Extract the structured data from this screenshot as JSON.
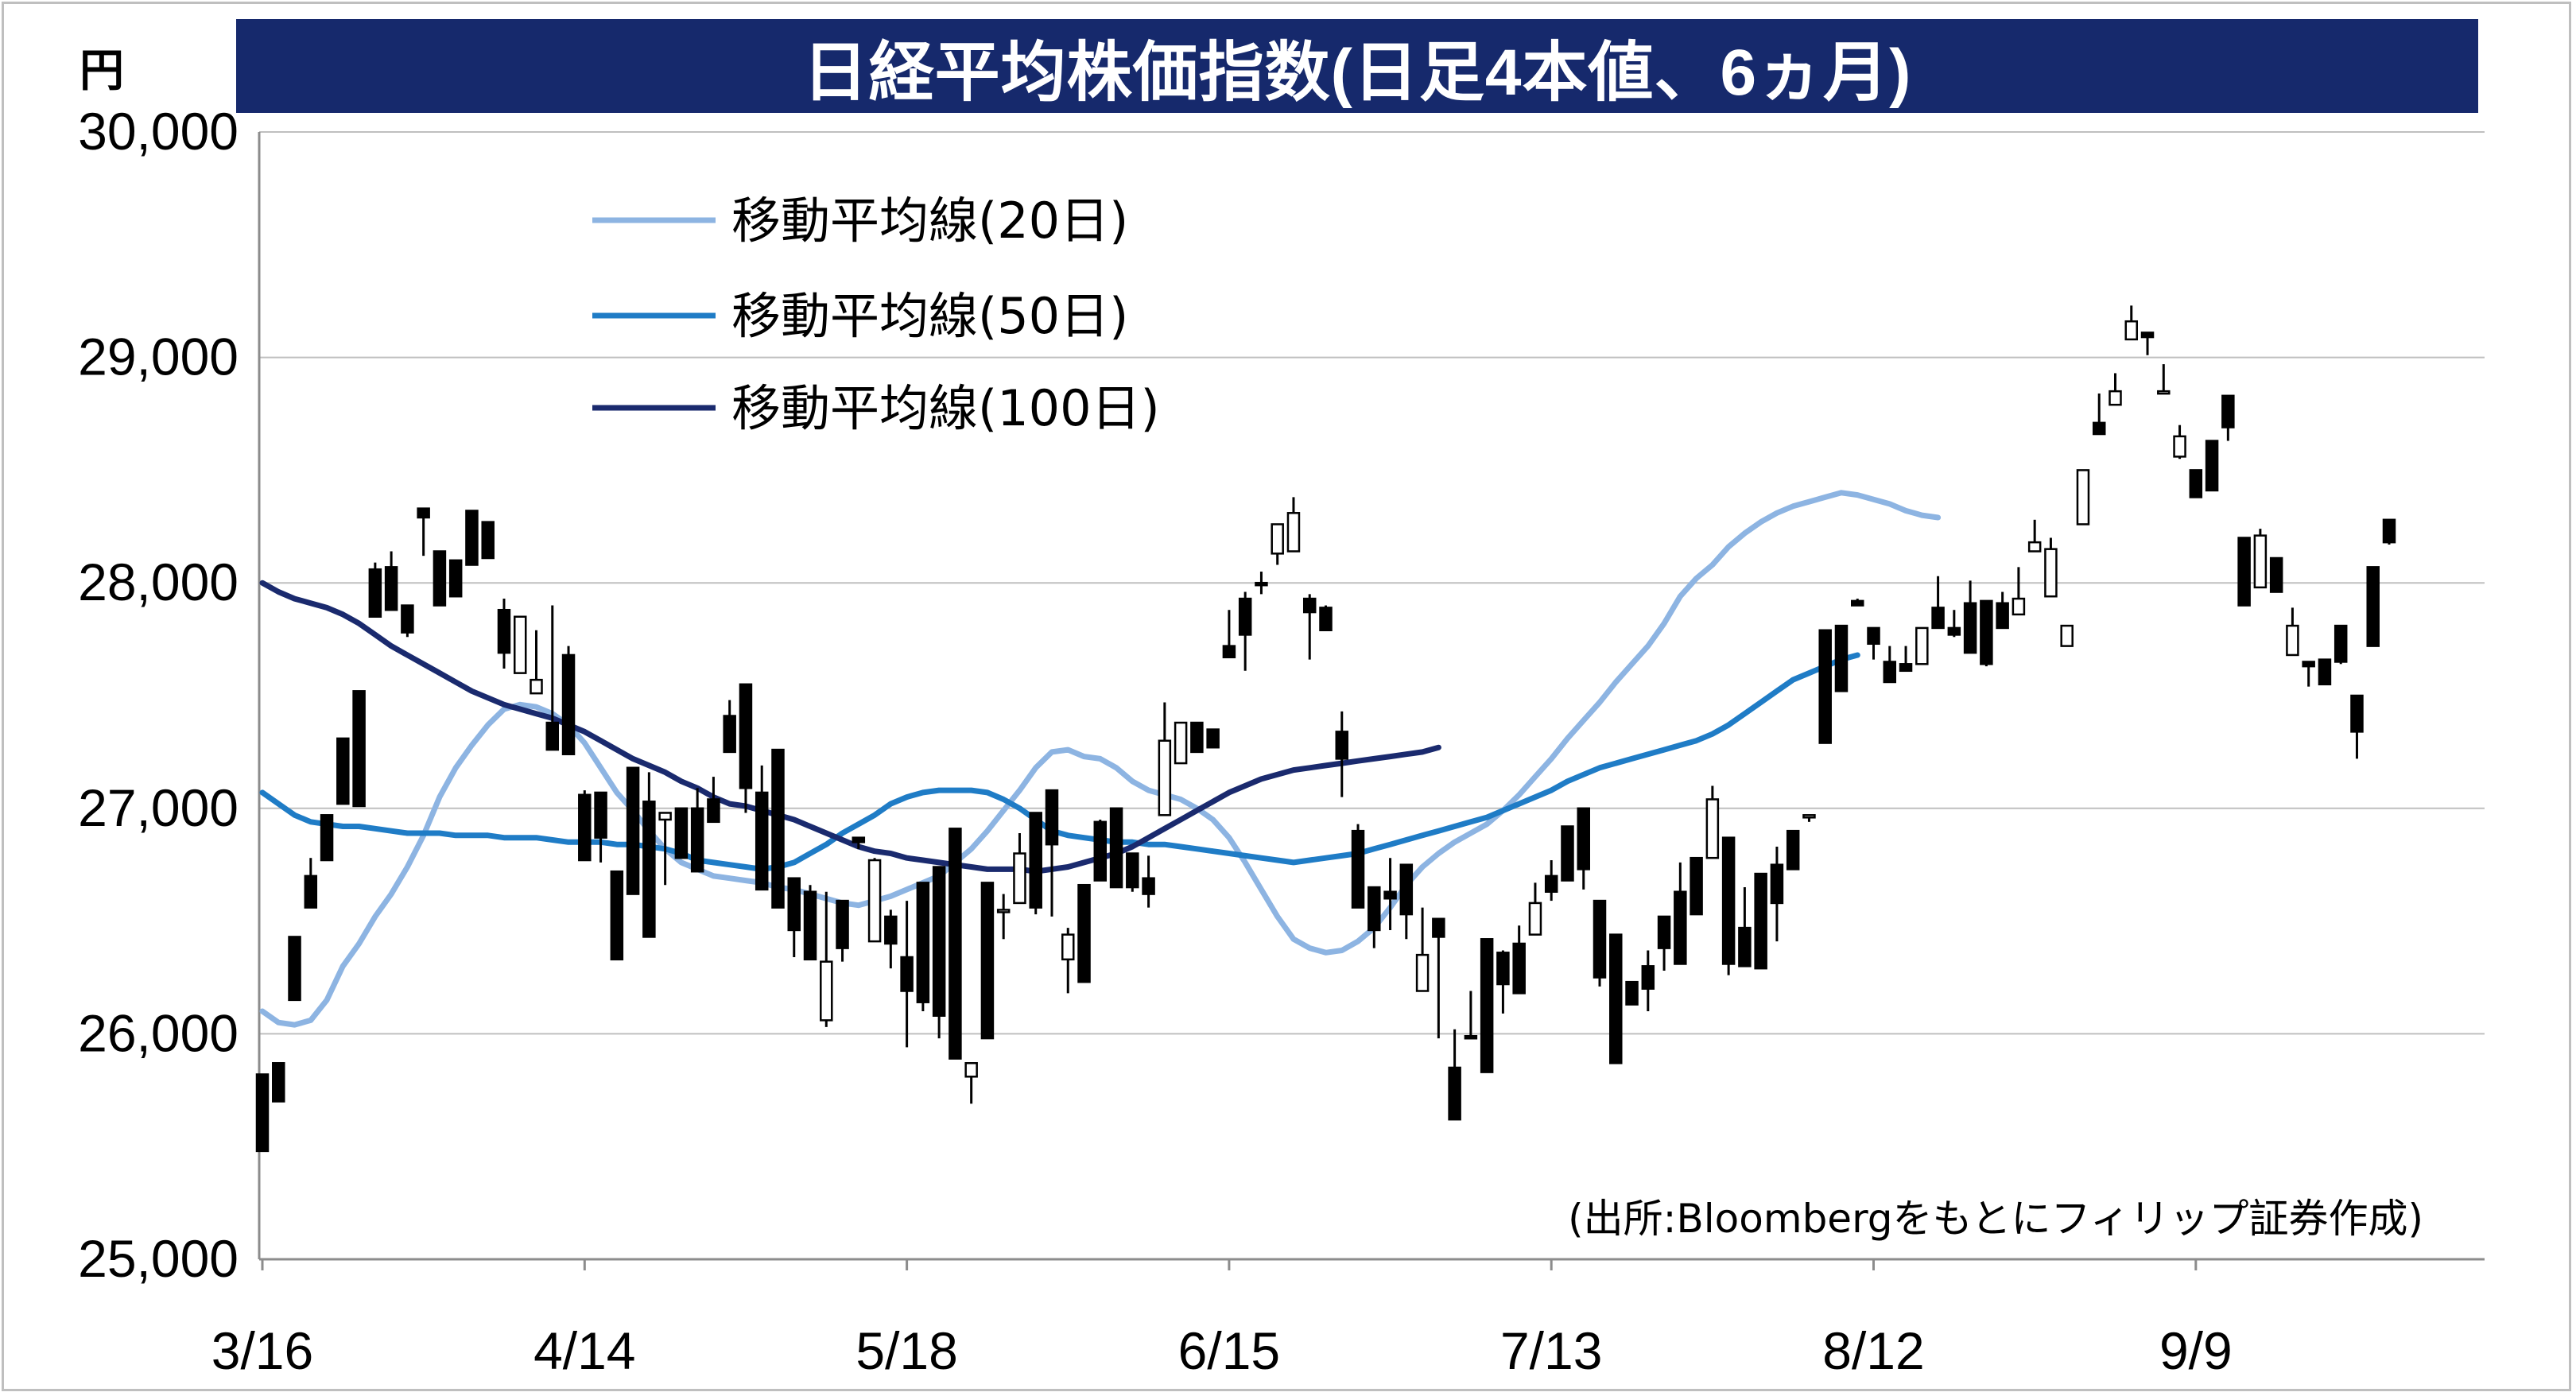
{
  "title": "日経平均株価指数(日足4本値、6ヵ月)",
  "unit_label": "円",
  "source_note": "(出所:Bloombergをもとにフィリップ証券作成)",
  "colors": {
    "title_bg": "#16296c",
    "title_text": "#ffffff",
    "ma20": "#8db4e2",
    "ma50": "#1f7cc6",
    "ma100": "#1a2a6e",
    "up_candle_fill": "#ffffff",
    "down_candle_fill": "#000000",
    "grid": "#bfbfbf"
  },
  "chart_data": {
    "type": "candlestick",
    "title": "日経平均株価指数(日足4本値、6ヵ月)",
    "ylabel": "円",
    "ylim": [
      25000,
      30000
    ],
    "yticks": [
      25000,
      26000,
      27000,
      28000,
      29000,
      30000
    ],
    "ytick_labels": [
      "25,000",
      "26,000",
      "27,000",
      "28,000",
      "29,000",
      "30,000"
    ],
    "xtick_labels": [
      "3/16",
      "4/14",
      "5/18",
      "6/15",
      "7/13",
      "8/12",
      "9/9"
    ],
    "xtick_index": [
      0,
      20,
      40,
      60,
      80,
      100,
      120
    ],
    "grid": true,
    "legend_position": "top-left",
    "series": [
      {
        "name": "移動平均線(20日)",
        "color": "#8db4e2",
        "values": [
          26100,
          26050,
          26040,
          26060,
          26150,
          26300,
          26400,
          26520,
          26620,
          26740,
          26880,
          27050,
          27180,
          27280,
          27370,
          27440,
          27460,
          27450,
          27420,
          27370,
          27290,
          27180,
          27070,
          26990,
          26900,
          26820,
          26760,
          26730,
          26700,
          26690,
          26680,
          26670,
          26650,
          26640,
          26620,
          26600,
          26580,
          26570,
          26590,
          26610,
          26640,
          26670,
          26700,
          26760,
          26820,
          26900,
          26990,
          27080,
          27180,
          27250,
          27260,
          27230,
          27220,
          27180,
          27120,
          27080,
          27060,
          27040,
          27000,
          26950,
          26870,
          26760,
          26640,
          26520,
          26420,
          26380,
          26360,
          26370,
          26410,
          26470,
          26560,
          26660,
          26740,
          26800,
          26850,
          26890,
          26930,
          26990,
          27060,
          27140,
          27220,
          27310,
          27390,
          27470,
          27560,
          27640,
          27720,
          27820,
          27940,
          28020,
          28080,
          28160,
          28220,
          28270,
          28310,
          28340,
          28360,
          28380,
          28400,
          28390,
          28370,
          28350,
          28320,
          28300,
          28290
        ]
      },
      {
        "name": "移動平均線(50日)",
        "color": "#1f7cc6",
        "values": [
          27070,
          27020,
          26970,
          26940,
          26930,
          26920,
          26920,
          26910,
          26900,
          26890,
          26890,
          26890,
          26880,
          26880,
          26880,
          26870,
          26870,
          26870,
          26860,
          26850,
          26850,
          26850,
          26840,
          26840,
          26830,
          26820,
          26800,
          26770,
          26760,
          26750,
          26740,
          26730,
          26740,
          26760,
          26800,
          26840,
          26890,
          26930,
          26970,
          27020,
          27050,
          27070,
          27080,
          27080,
          27080,
          27070,
          27040,
          27000,
          26950,
          26900,
          26880,
          26870,
          26860,
          26850,
          26850,
          26840,
          26840,
          26830,
          26820,
          26810,
          26800,
          26790,
          26780,
          26770,
          26760,
          26770,
          26780,
          26790,
          26800,
          26820,
          26840,
          26860,
          26880,
          26900,
          26920,
          26940,
          26960,
          26990,
          27020,
          27050,
          27080,
          27120,
          27150,
          27180,
          27200,
          27220,
          27240,
          27260,
          27280,
          27300,
          27330,
          27370,
          27420,
          27470,
          27520,
          27570,
          27600,
          27630,
          27660,
          27680
        ]
      },
      {
        "name": "移動平均線(100日)",
        "color": "#1a2a6e",
        "values": [
          28000,
          27960,
          27930,
          27910,
          27890,
          27860,
          27820,
          27770,
          27720,
          27680,
          27640,
          27600,
          27560,
          27520,
          27490,
          27460,
          27440,
          27420,
          27400,
          27370,
          27340,
          27300,
          27260,
          27220,
          27190,
          27160,
          27120,
          27090,
          27050,
          27020,
          27010,
          26990,
          26970,
          26950,
          26920,
          26890,
          26860,
          26830,
          26810,
          26800,
          26780,
          26770,
          26760,
          26750,
          26740,
          26730,
          26730,
          26730,
          26720,
          26730,
          26740,
          26760,
          26780,
          26800,
          26830,
          26870,
          26910,
          26950,
          26990,
          27030,
          27070,
          27100,
          27130,
          27150,
          27170,
          27180,
          27190,
          27200,
          27210,
          27220,
          27230,
          27240,
          27250,
          27270
        ]
      }
    ],
    "candles": [
      [
        25820,
        25480,
        25810,
        25680
      ],
      [
        25870,
        25700,
        25710,
        25840
      ],
      [
        26430,
        26150,
        26200,
        26400
      ],
      [
        26700,
        26560,
        26600,
        26780
      ],
      [
        26970,
        26770,
        26800,
        26920
      ],
      [
        27310,
        27020,
        27150,
        27210
      ],
      [
        27520,
        27010,
        27200,
        27210
      ],
      [
        28060,
        27850,
        27850,
        28090
      ],
      [
        28070,
        27880,
        27910,
        28140
      ],
      [
        27900,
        27780,
        27850,
        27760
      ],
      [
        28330,
        28290,
        28280,
        28120
      ],
      [
        28140,
        27900,
        28040,
        27910
      ],
      [
        28100,
        27940,
        28020,
        28090
      ],
      [
        28320,
        28080,
        28210,
        28280
      ],
      [
        28270,
        28110,
        28120,
        28140
      ],
      [
        27880,
        27690,
        27930,
        27620
      ],
      [
        27600,
        27850,
        27600,
        27670
      ],
      [
        27510,
        27570,
        27760,
        27790
      ],
      [
        27380,
        27260,
        27900,
        27710
      ],
      [
        27680,
        27240,
        27720,
        27290
      ],
      [
        27060,
        26770,
        27080,
        26940
      ],
      [
        27070,
        26870,
        26910,
        26760
      ],
      [
        26720,
        26330,
        26670,
        26340
      ],
      [
        27180,
        26620,
        26720,
        26890
      ],
      [
        27030,
        26430,
        26750,
        27160
      ],
      [
        26950,
        26980,
        26810,
        26660
      ],
      [
        27000,
        26780,
        26910,
        26830
      ],
      [
        27000,
        26720,
        26910,
        27090
      ],
      [
        27040,
        26940,
        27090,
        27140
      ],
      [
        27410,
        27250,
        27370,
        27480
      ],
      [
        27550,
        27090,
        26980,
        27380
      ],
      [
        27070,
        26640,
        27190,
        27000
      ],
      [
        27260,
        26560,
        26670,
        26890
      ],
      [
        26690,
        26460,
        26340,
        26690
      ],
      [
        26630,
        26330,
        26430,
        26660
      ],
      [
        26060,
        26320,
        26030,
        26630
      ],
      [
        26590,
        26380,
        26320,
        26450
      ],
      [
        26870,
        26850,
        26850,
        26820
      ],
      [
        26410,
        26770,
        26420,
        26780
      ],
      [
        26520,
        26400,
        26290,
        26550
      ],
      [
        26340,
        26190,
        26590,
        25940
      ],
      [
        26670,
        26140,
        26100,
        26300
      ],
      [
        26740,
        26080,
        25980,
        26530
      ],
      [
        26910,
        25890,
        26090,
        26220
      ],
      [
        25810,
        25870,
        25690,
        25780
      ],
      [
        26670,
        25980,
        26010,
        26300
      ],
      [
        26550,
        26550,
        26420,
        26620
      ],
      [
        26580,
        26800,
        26720,
        26890
      ],
      [
        26980,
        26560,
        26530,
        26740
      ],
      [
        27080,
        26840,
        26520,
        26900
      ],
      [
        26330,
        26440,
        26180,
        26470
      ],
      [
        26660,
        26230,
        26260,
        26640
      ],
      [
        26940,
        26680,
        26700,
        26950
      ],
      [
        27000,
        26650,
        26890,
        26900
      ],
      [
        26800,
        26650,
        26740,
        26630
      ],
      [
        26690,
        26620,
        26560,
        26790
      ],
      [
        26970,
        27300,
        27250,
        27470
      ],
      [
        27200,
        27380,
        27340,
        27350
      ],
      [
        27380,
        27250,
        27280,
        27370
      ],
      [
        27350,
        27270,
        27350,
        27350
      ],
      [
        27720,
        27670,
        27740,
        27880
      ],
      [
        27930,
        27770,
        27610,
        27960
      ],
      [
        28000,
        27990,
        27950,
        28050
      ],
      [
        28130,
        28260,
        28080,
        28220
      ],
      [
        28140,
        28310,
        28380,
        28300
      ],
      [
        27930,
        27870,
        27950,
        27660
      ],
      [
        27890,
        27790,
        27830,
        27900
      ],
      [
        27340,
        27220,
        27430,
        27050
      ],
      [
        26900,
        26560,
        26630,
        26930
      ],
      [
        26650,
        26460,
        26550,
        26380
      ],
      [
        26630,
        26600,
        26460,
        26780
      ],
      [
        26750,
        26530,
        26420,
        26740
      ],
      [
        26190,
        26350,
        26200,
        26560
      ],
      [
        26510,
        26430,
        25980,
        26040
      ],
      [
        25850,
        25620,
        26020,
        25630
      ],
      [
        25990,
        25980,
        25990,
        26190
      ],
      [
        26420,
        25830,
        26100,
        26250
      ],
      [
        26360,
        26220,
        26090,
        26370
      ],
      [
        26400,
        26180,
        26270,
        26480
      ],
      [
        26440,
        26580,
        26620,
        26670
      ],
      [
        26700,
        26630,
        26590,
        26770
      ],
      [
        26920,
        26680,
        26860,
        26820
      ],
      [
        27000,
        26730,
        26640,
        26810
      ],
      [
        26590,
        26250,
        26420,
        26210
      ],
      [
        26440,
        25870,
        26280,
        26390
      ],
      [
        26230,
        26130,
        26140,
        26170
      ],
      [
        26300,
        26200,
        26100,
        26370
      ],
      [
        26520,
        26380,
        26280,
        26400
      ],
      [
        26630,
        26310,
        26470,
        26760
      ],
      [
        26780,
        26530,
        26530,
        26640
      ],
      [
        26780,
        27040,
        27100,
        26840
      ],
      [
        26870,
        26310,
        26260,
        26590
      ],
      [
        26470,
        26300,
        26350,
        26650
      ],
      [
        26710,
        26290,
        26330,
        26600
      ],
      [
        26750,
        26580,
        26410,
        26830
      ],
      [
        26900,
        26730,
        26820,
        26760
      ],
      [
        26960,
        26970,
        26940,
        26960
      ],
      [
        27790,
        27290,
        27310,
        27680
      ],
      [
        27810,
        27520,
        27660,
        27800
      ],
      [
        27920,
        27900,
        27920,
        27930
      ],
      [
        27800,
        27730,
        27710,
        27660
      ],
      [
        27650,
        27560,
        27650,
        27720
      ],
      [
        27640,
        27610,
        27620,
        27720
      ],
      [
        27640,
        27800,
        27670,
        27800
      ],
      [
        27890,
        27800,
        27930,
        28030
      ],
      [
        27800,
        27770,
        27760,
        27880
      ],
      [
        27910,
        27690,
        27860,
        28010
      ],
      [
        27920,
        27640,
        27630,
        27690
      ],
      [
        27910,
        27800,
        27850,
        27960
      ],
      [
        27860,
        27930,
        28060,
        28070
      ],
      [
        28140,
        28180,
        28190,
        28280
      ],
      [
        27940,
        28150,
        28170,
        28200
      ],
      [
        27720,
        27810,
        27720,
        27810
      ],
      [
        28260,
        28500,
        28420,
        28430
      ],
      [
        28710,
        28660,
        28810,
        28840
      ],
      [
        28790,
        28850,
        28830,
        28930
      ],
      [
        29080,
        29160,
        29110,
        29230
      ],
      [
        29110,
        29090,
        29010,
        29080
      ],
      [
        28850,
        28850,
        28910,
        28970
      ],
      [
        28560,
        28650,
        28550,
        28700
      ],
      [
        28500,
        28380,
        28440,
        28490
      ],
      [
        28630,
        28410,
        28500,
        28520
      ],
      [
        28830,
        28690,
        28630,
        28740
      ],
      [
        28200,
        27900,
        27950,
        28190
      ],
      [
        27980,
        28210,
        28150,
        28240
      ],
      [
        28110,
        27960,
        28060,
        28000
      ],
      [
        27680,
        27810,
        27790,
        27890
      ],
      [
        27650,
        27630,
        27540,
        27650
      ],
      [
        27660,
        27550,
        27590,
        27650
      ],
      [
        27810,
        27650,
        27640,
        27640
      ],
      [
        27500,
        27340,
        27220,
        27370
      ],
      [
        28070,
        27720,
        27720,
        28020
      ],
      [
        28280,
        28180,
        28170,
        28230
      ]
    ]
  }
}
